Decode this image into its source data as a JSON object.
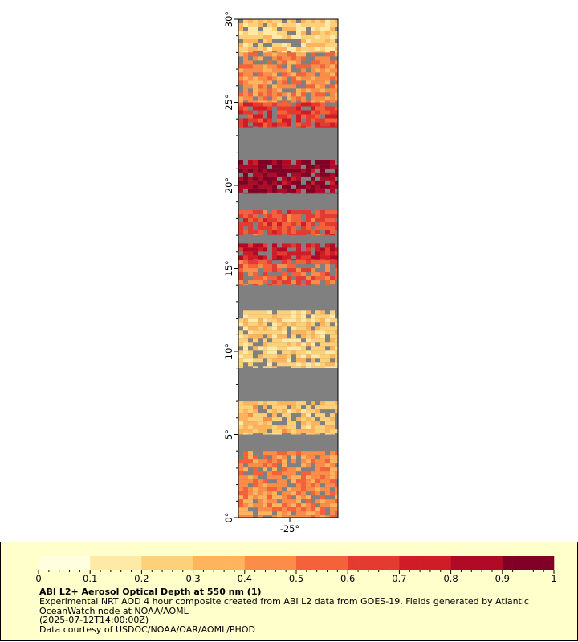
{
  "map": {
    "lat_ticks": [
      "0°",
      "5°",
      "10°",
      "15°",
      "20°",
      "25°",
      "30°"
    ],
    "lat_values": [
      0,
      5,
      10,
      15,
      20,
      25,
      30
    ],
    "lon_tick": "-25°",
    "lat_range": [
      0,
      30
    ],
    "colors": {
      "no_data": "#808080",
      "cloud": "#b8b8b8",
      "frame": "#000000"
    },
    "aod_bands": [
      {
        "lat_from": 28.0,
        "lat_to": 30.0,
        "aod": 0.25
      },
      {
        "lat_from": 25.0,
        "lat_to": 28.0,
        "aod": 0.45
      },
      {
        "lat_from": 23.5,
        "lat_to": 25.0,
        "aod": 0.65
      },
      {
        "lat_from": 19.5,
        "lat_to": 21.5,
        "aod": 0.9
      },
      {
        "lat_from": 17.0,
        "lat_to": 18.5,
        "aod": 0.6
      },
      {
        "lat_from": 15.5,
        "lat_to": 16.5,
        "aod": 0.75
      },
      {
        "lat_from": 14.0,
        "lat_to": 15.5,
        "aod": 0.55
      },
      {
        "lat_from": 9.0,
        "lat_to": 12.5,
        "aod": 0.25
      },
      {
        "lat_from": 5.0,
        "lat_to": 7.0,
        "aod": 0.3
      },
      {
        "lat_from": 0.0,
        "lat_to": 4.0,
        "aod": 0.45
      }
    ]
  },
  "legend": {
    "title": "ABI L2+ Aerosol Optical Depth at 550 nm (1)",
    "line1": "Experimental NRT AOD 4 hour composite created from ABI L2 data from GOES-19. Fields generated by Atlantic",
    "line2": "OceanWatch node at NOAA/AOML",
    "line3": "(2025-07-12T14:00:00Z)",
    "line4": "Data courtesy of USDOC/NOAA/OAR/AOML/PHOD",
    "tick_labels": [
      "0",
      "0.1",
      "0.2",
      "0.3",
      "0.4",
      "0.5",
      "0.6",
      "0.7",
      "0.8",
      "0.9",
      "1"
    ],
    "range": [
      0,
      1
    ],
    "colormap": [
      "#ffffe0",
      "#fee9a6",
      "#fdd07a",
      "#fdb45c",
      "#fc8d48",
      "#f4613a",
      "#e53a30",
      "#d01c27",
      "#b00a26",
      "#800026"
    ]
  }
}
